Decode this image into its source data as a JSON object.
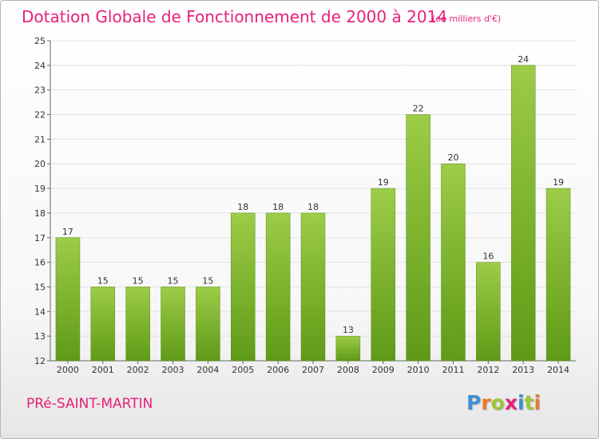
{
  "header": {
    "title": "Dotation Globale de Fonctionnement de 2000 à 2014",
    "subtitle": "(en milliers d'€)"
  },
  "footer": {
    "commune": "PRé-SAINT-MARTIN",
    "logo_letters": [
      "P",
      "r",
      "o",
      "x",
      "i",
      "t",
      "i"
    ],
    "logo_colors": [
      "#3f8fd2",
      "#e8782a",
      "#9bc637",
      "#e8207a",
      "#3f8fd2",
      "#9bc637",
      "#e8782a"
    ]
  },
  "colors": {
    "bar_light": "#9ccc48",
    "bar_dark": "#5f9a16",
    "text": "#e8207a",
    "grid": "#e2e2e2"
  },
  "chart_data": {
    "type": "bar",
    "title": "Dotation Globale de Fonctionnement de 2000 à 2014",
    "subtitle": "(en milliers d'€)",
    "categories": [
      "2000",
      "2001",
      "2002",
      "2003",
      "2004",
      "2005",
      "2006",
      "2007",
      "2008",
      "2009",
      "2010",
      "2011",
      "2012",
      "2013",
      "2014"
    ],
    "values": [
      17,
      15,
      15,
      15,
      15,
      18,
      18,
      18,
      13,
      19,
      22,
      20,
      16,
      24,
      19
    ],
    "ylim": [
      12,
      25
    ],
    "yticks": [
      12,
      13,
      14,
      15,
      16,
      17,
      18,
      19,
      20,
      21,
      22,
      23,
      24,
      25
    ],
    "grid": true,
    "data_labels": true,
    "xlabel": "",
    "ylabel": ""
  }
}
